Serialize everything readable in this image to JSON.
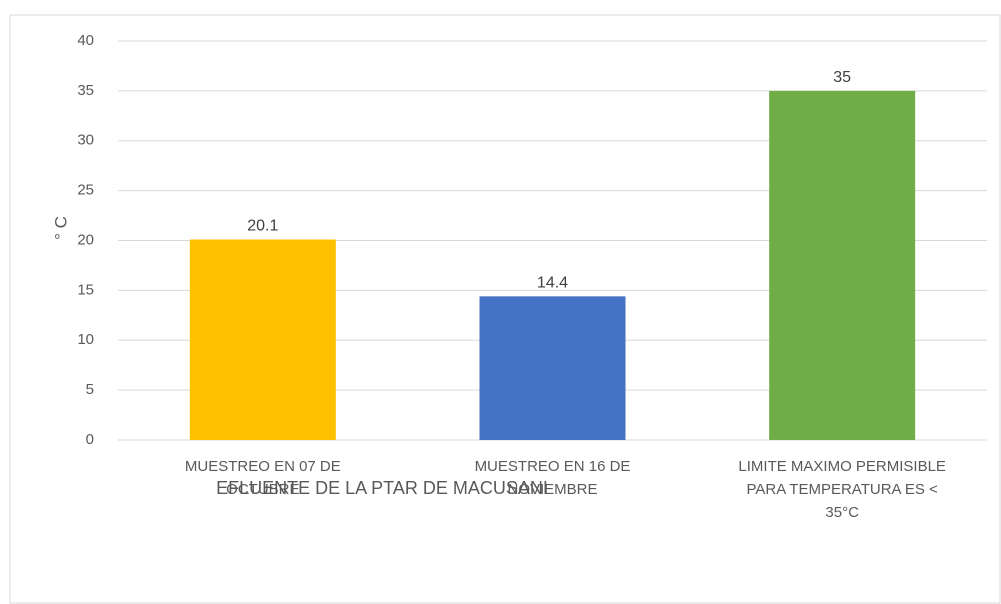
{
  "chart_data": {
    "type": "bar",
    "categories": [
      "MUESTREO EN 07 DE OCTUBRE",
      "MUESTREO EN 16 DE NOVIEMBRE",
      "LIMITE MAXIMO PERMISIBLE PARA TEMPERATURA ES < 35°C"
    ],
    "values": [
      20.1,
      14.4,
      35
    ],
    "colors": [
      "#ffc000",
      "#4472c4",
      "#70ad47"
    ],
    "x_label": "EFLUENTE DE LA PTAR DE MACUSANI",
    "y_label": "° C",
    "ylim": [
      0,
      40
    ],
    "yticks": [
      0,
      5,
      10,
      15,
      20,
      25,
      30,
      35,
      40
    ],
    "grid": true
  }
}
